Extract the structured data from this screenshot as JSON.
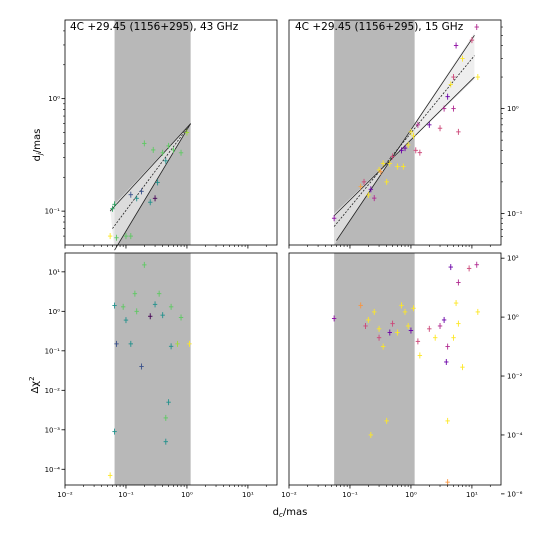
{
  "chart_data": [
    {
      "id": "tl",
      "type": "scatter",
      "title": "4C +29.45 (1156+295), 43 GHz",
      "xscale": "log",
      "yscale": "log",
      "xlim": [
        0.01,
        30
      ],
      "ylim": [
        0.05,
        5
      ],
      "ylabel_tex": "dj/mas",
      "shade_x": [
        0.065,
        1.15
      ],
      "yticks": [
        0.1,
        1
      ],
      "ytick_labels": [
        "10⁻¹",
        "10⁰"
      ],
      "ytick_side": "left",
      "fit_lines": [
        [
          [
            0.055,
            0.1
          ],
          [
            1.15,
            0.6
          ]
        ],
        [
          [
            0.06,
            0.07
          ],
          [
            1.15,
            0.6
          ]
        ],
        [
          [
            0.065,
            0.045
          ],
          [
            1.15,
            0.6
          ]
        ]
      ],
      "band": [
        [
          0.055,
          0.105
        ],
        [
          1.15,
          0.6
        ],
        [
          0.065,
          0.045
        ]
      ],
      "points": [
        {
          "x": 0.06,
          "y": 0.105,
          "c": "#2ca25f"
        },
        {
          "x": 0.065,
          "y": 0.115,
          "c": "#2ca25f"
        },
        {
          "x": 0.055,
          "y": 0.06,
          "c": "#fde725"
        },
        {
          "x": 0.07,
          "y": 0.058,
          "c": "#5ec962"
        },
        {
          "x": 0.08,
          "y": 0.048,
          "c": "#5ec962"
        },
        {
          "x": 0.1,
          "y": 0.06,
          "c": "#5ec962"
        },
        {
          "x": 0.12,
          "y": 0.06,
          "c": "#5ec962"
        },
        {
          "x": 0.12,
          "y": 0.14,
          "c": "#3b528b"
        },
        {
          "x": 0.15,
          "y": 0.13,
          "c": "#21918c"
        },
        {
          "x": 0.18,
          "y": 0.15,
          "c": "#3b528b"
        },
        {
          "x": 0.2,
          "y": 0.4,
          "c": "#5ec962"
        },
        {
          "x": 0.25,
          "y": 0.12,
          "c": "#21918c"
        },
        {
          "x": 0.28,
          "y": 0.35,
          "c": "#5ec962"
        },
        {
          "x": 0.3,
          "y": 0.13,
          "c": "#440154"
        },
        {
          "x": 0.33,
          "y": 0.18,
          "c": "#21918c"
        },
        {
          "x": 0.4,
          "y": 0.33,
          "c": "#5ec962"
        },
        {
          "x": 0.45,
          "y": 0.28,
          "c": "#21918c"
        },
        {
          "x": 0.5,
          "y": 0.38,
          "c": "#5ec962"
        },
        {
          "x": 0.6,
          "y": 0.35,
          "c": "#5ec962"
        },
        {
          "x": 0.8,
          "y": 0.33,
          "c": "#5ec962"
        },
        {
          "x": 1.0,
          "y": 0.5,
          "c": "#a0da39"
        }
      ]
    },
    {
      "id": "tr",
      "type": "scatter",
      "title": "4C +29.45 (1156+295), 15 GHz",
      "xscale": "log",
      "yscale": "log",
      "xlim": [
        0.01,
        30
      ],
      "ylim": [
        0.05,
        7
      ],
      "shade_x": [
        0.055,
        1.15
      ],
      "yticks": [
        0.1,
        1
      ],
      "ytick_labels": [
        "10⁻¹",
        "10⁰"
      ],
      "ytick_side": "right",
      "fit_lines": [
        [
          [
            0.055,
            0.095
          ],
          [
            11,
            2.0
          ]
        ],
        [
          [
            0.055,
            0.075
          ],
          [
            11,
            3.2
          ]
        ],
        [
          [
            0.06,
            0.055
          ],
          [
            11,
            5.0
          ]
        ]
      ],
      "band": [
        [
          0.055,
          0.1
        ],
        [
          11,
          1.9
        ],
        [
          11,
          5.3
        ],
        [
          0.055,
          0.05
        ]
      ],
      "points": [
        {
          "x": 0.055,
          "y": 0.09,
          "c": "#8f0da4"
        },
        {
          "x": 0.15,
          "y": 0.18,
          "c": "#f9a242"
        },
        {
          "x": 0.17,
          "y": 0.2,
          "c": "#cc4778"
        },
        {
          "x": 0.2,
          "y": 0.15,
          "c": "#fde725"
        },
        {
          "x": 0.22,
          "y": 0.17,
          "c": "#6a00a8"
        },
        {
          "x": 0.25,
          "y": 0.14,
          "c": "#b12a90"
        },
        {
          "x": 0.3,
          "y": 0.26,
          "c": "#fde725"
        },
        {
          "x": 0.32,
          "y": 0.25,
          "c": "#f89540"
        },
        {
          "x": 0.35,
          "y": 0.3,
          "c": "#fde725"
        },
        {
          "x": 0.4,
          "y": 0.2,
          "c": "#fde725"
        },
        {
          "x": 0.45,
          "y": 0.3,
          "c": "#fde725"
        },
        {
          "x": 0.5,
          "y": 0.35,
          "c": "#cc4778"
        },
        {
          "x": 0.6,
          "y": 0.28,
          "c": "#fde725"
        },
        {
          "x": 0.7,
          "y": 0.4,
          "c": "#6a00a8"
        },
        {
          "x": 0.8,
          "y": 0.42,
          "c": "#6a00a8"
        },
        {
          "x": 0.75,
          "y": 0.28,
          "c": "#fde725"
        },
        {
          "x": 0.9,
          "y": 0.45,
          "c": "#fde725"
        },
        {
          "x": 1.0,
          "y": 0.6,
          "c": "#fde725"
        },
        {
          "x": 1.1,
          "y": 0.55,
          "c": "#fde725"
        },
        {
          "x": 1.2,
          "y": 0.4,
          "c": "#cc4778"
        },
        {
          "x": 1.3,
          "y": 0.7,
          "c": "#b12a90"
        },
        {
          "x": 1.4,
          "y": 0.38,
          "c": "#cc4778"
        },
        {
          "x": 2.0,
          "y": 0.7,
          "c": "#6a00a8"
        },
        {
          "x": 3.0,
          "y": 0.65,
          "c": "#cc4778"
        },
        {
          "x": 3.5,
          "y": 1.0,
          "c": "#b12a90"
        },
        {
          "x": 4.0,
          "y": 1.3,
          "c": "#6a00a8"
        },
        {
          "x": 4.5,
          "y": 1.7,
          "c": "#fde725"
        },
        {
          "x": 5.0,
          "y": 1.0,
          "c": "#b12a90"
        },
        {
          "x": 5.0,
          "y": 2.0,
          "c": "#cc4778"
        },
        {
          "x": 5.5,
          "y": 4.0,
          "c": "#8f0da4"
        },
        {
          "x": 6.0,
          "y": 0.6,
          "c": "#cc4778"
        },
        {
          "x": 7.0,
          "y": 3.0,
          "c": "#fde725"
        },
        {
          "x": 10.0,
          "y": 4.5,
          "c": "#cc4778"
        },
        {
          "x": 12.0,
          "y": 6.0,
          "c": "#b12a90"
        },
        {
          "x": 12.5,
          "y": 2.0,
          "c": "#fde725"
        }
      ]
    },
    {
      "id": "bl",
      "type": "scatter",
      "xscale": "log",
      "yscale": "log",
      "xlim": [
        0.01,
        30
      ],
      "ylim": [
        4e-05,
        30
      ],
      "ylabel_tex": "Δχ²",
      "shade_x": [
        0.065,
        1.15
      ],
      "yticks": [
        0.0001,
        0.001,
        0.01,
        0.1,
        1,
        10
      ],
      "ytick_labels": [
        "10⁻⁴",
        "10⁻³",
        "10⁻²",
        "10⁻¹",
        "10⁰",
        "10¹"
      ],
      "ytick_side": "left",
      "xticks": [
        0.01,
        0.1,
        1,
        10
      ],
      "xtick_labels": [
        "10⁻²",
        "10⁻¹",
        "10⁰",
        "10¹"
      ],
      "points": [
        {
          "x": 0.055,
          "y": 7e-05,
          "c": "#fde725"
        },
        {
          "x": 0.065,
          "y": 0.0009,
          "c": "#21918c"
        },
        {
          "x": 0.065,
          "y": 1.4,
          "c": "#21918c"
        },
        {
          "x": 0.07,
          "y": 0.15,
          "c": "#3b528b"
        },
        {
          "x": 0.09,
          "y": 1.3,
          "c": "#5ec962"
        },
        {
          "x": 0.1,
          "y": 0.6,
          "c": "#21918c"
        },
        {
          "x": 0.12,
          "y": 0.15,
          "c": "#21918c"
        },
        {
          "x": 0.14,
          "y": 2.8,
          "c": "#5ec962"
        },
        {
          "x": 0.15,
          "y": 1.0,
          "c": "#5ec962"
        },
        {
          "x": 0.18,
          "y": 0.04,
          "c": "#3b528b"
        },
        {
          "x": 0.2,
          "y": 15.0,
          "c": "#5ec962"
        },
        {
          "x": 0.25,
          "y": 0.75,
          "c": "#440154"
        },
        {
          "x": 0.3,
          "y": 1.5,
          "c": "#21918c"
        },
        {
          "x": 0.35,
          "y": 2.8,
          "c": "#5ec962"
        },
        {
          "x": 0.4,
          "y": 0.8,
          "c": "#21918c"
        },
        {
          "x": 0.45,
          "y": 0.0005,
          "c": "#21918c"
        },
        {
          "x": 0.45,
          "y": 0.002,
          "c": "#5ec962"
        },
        {
          "x": 0.5,
          "y": 0.005,
          "c": "#21918c"
        },
        {
          "x": 0.55,
          "y": 0.13,
          "c": "#21918c"
        },
        {
          "x": 0.55,
          "y": 1.3,
          "c": "#5ec962"
        },
        {
          "x": 0.7,
          "y": 0.15,
          "c": "#a0da39"
        },
        {
          "x": 0.8,
          "y": 0.7,
          "c": "#5ec962"
        },
        {
          "x": 1.1,
          "y": 0.15,
          "c": "#fde725"
        }
      ]
    },
    {
      "id": "br",
      "type": "scatter",
      "xscale": "log",
      "yscale": "log",
      "xlim": [
        0.01,
        30
      ],
      "ylim": [
        2e-06,
        150
      ],
      "shade_x": [
        0.055,
        1.15
      ],
      "yticks": [
        1e-06,
        0.0001,
        0.01,
        1,
        100
      ],
      "ytick_labels": [
        "10⁻⁶",
        "10⁻⁴",
        "10⁻²",
        "10⁰",
        "10²"
      ],
      "ytick_side": "right",
      "xticks": [
        0.01,
        0.1,
        1,
        10
      ],
      "xtick_labels": [
        "10⁻²",
        "10⁻¹",
        "10⁰",
        "10¹"
      ],
      "points": [
        {
          "x": 0.055,
          "y": 0.9,
          "c": "#8f0da4"
        },
        {
          "x": 0.15,
          "y": 2.5,
          "c": "#f89540"
        },
        {
          "x": 0.18,
          "y": 0.5,
          "c": "#cc4778"
        },
        {
          "x": 0.2,
          "y": 0.8,
          "c": "#fde725"
        },
        {
          "x": 0.22,
          "y": 0.0001,
          "c": "#fde725"
        },
        {
          "x": 0.25,
          "y": 1.5,
          "c": "#fde725"
        },
        {
          "x": 0.3,
          "y": 0.4,
          "c": "#fde725"
        },
        {
          "x": 0.3,
          "y": 0.2,
          "c": "#cc4778"
        },
        {
          "x": 0.35,
          "y": 0.1,
          "c": "#fde725"
        },
        {
          "x": 0.4,
          "y": 0.0003,
          "c": "#fde725"
        },
        {
          "x": 0.45,
          "y": 0.3,
          "c": "#6a00a8"
        },
        {
          "x": 0.5,
          "y": 0.6,
          "c": "#cc4778"
        },
        {
          "x": 0.6,
          "y": 0.3,
          "c": "#fde725"
        },
        {
          "x": 0.7,
          "y": 2.5,
          "c": "#fde725"
        },
        {
          "x": 0.8,
          "y": 1.5,
          "c": "#fde725"
        },
        {
          "x": 0.9,
          "y": 0.5,
          "c": "#fde725"
        },
        {
          "x": 1.0,
          "y": 0.35,
          "c": "#6a00a8"
        },
        {
          "x": 1.1,
          "y": 2.0,
          "c": "#fde725"
        },
        {
          "x": 1.3,
          "y": 0.15,
          "c": "#cc4778"
        },
        {
          "x": 1.4,
          "y": 0.05,
          "c": "#fde725"
        },
        {
          "x": 2.0,
          "y": 0.4,
          "c": "#cc4778"
        },
        {
          "x": 2.5,
          "y": 0.2,
          "c": "#fde725"
        },
        {
          "x": 3.0,
          "y": 0.5,
          "c": "#b12a90"
        },
        {
          "x": 3.5,
          "y": 0.8,
          "c": "#6a00a8"
        },
        {
          "x": 3.8,
          "y": 0.03,
          "c": "#6a00a8"
        },
        {
          "x": 4.0,
          "y": 0.1,
          "c": "#b12a90"
        },
        {
          "x": 4.0,
          "y": 0.0003,
          "c": "#fde725"
        },
        {
          "x": 4.0,
          "y": 2.5e-06,
          "c": "#f89540"
        },
        {
          "x": 4.5,
          "y": 50.0,
          "c": "#6a00a8"
        },
        {
          "x": 5.0,
          "y": 0.2,
          "c": "#fde725"
        },
        {
          "x": 5.5,
          "y": 3.0,
          "c": "#fde725"
        },
        {
          "x": 6.0,
          "y": 15.0,
          "c": "#b12a90"
        },
        {
          "x": 6.0,
          "y": 0.6,
          "c": "#fde725"
        },
        {
          "x": 7.0,
          "y": 0.02,
          "c": "#fde725"
        },
        {
          "x": 9.0,
          "y": 45.0,
          "c": "#cc4778"
        },
        {
          "x": 12.0,
          "y": 60.0,
          "c": "#b12a90"
        },
        {
          "x": 12.5,
          "y": 1.5,
          "c": "#fde725"
        }
      ]
    }
  ],
  "shared": {
    "xlabel_tex": "dc/mas",
    "shade_color": "#b8b8b8"
  }
}
